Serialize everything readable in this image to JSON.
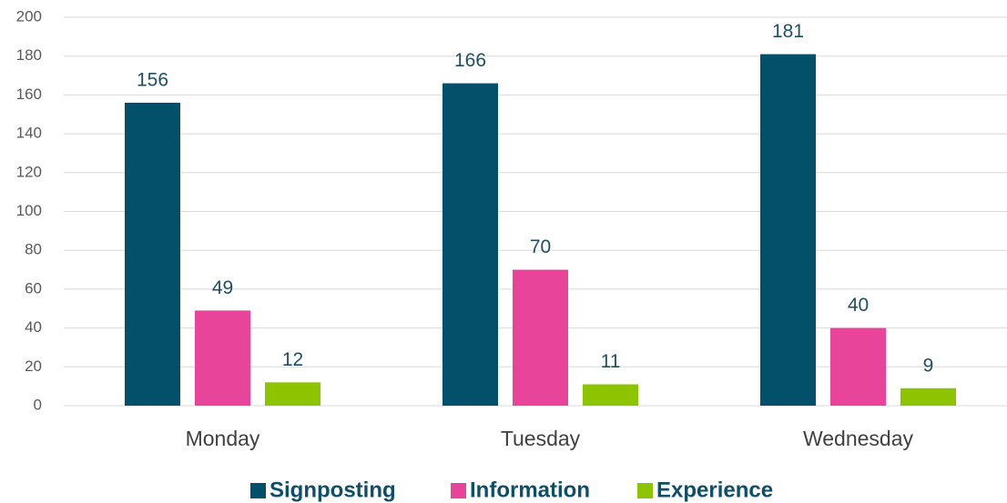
{
  "chart_data": {
    "type": "bar",
    "categories": [
      "Monday",
      "Tuesday",
      "Wednesday"
    ],
    "series": [
      {
        "name": "Signposting",
        "color": "#03506b",
        "values": [
          156,
          166,
          181
        ]
      },
      {
        "name": "Information",
        "color": "#e8449a",
        "values": [
          49,
          70,
          40
        ]
      },
      {
        "name": "Experience",
        "color": "#8cc400",
        "values": [
          12,
          11,
          9
        ]
      }
    ],
    "ylim": [
      0,
      200
    ],
    "yticks": [
      0,
      20,
      40,
      60,
      80,
      100,
      120,
      140,
      160,
      180,
      200
    ],
    "grid": true,
    "legend": "bottom"
  }
}
